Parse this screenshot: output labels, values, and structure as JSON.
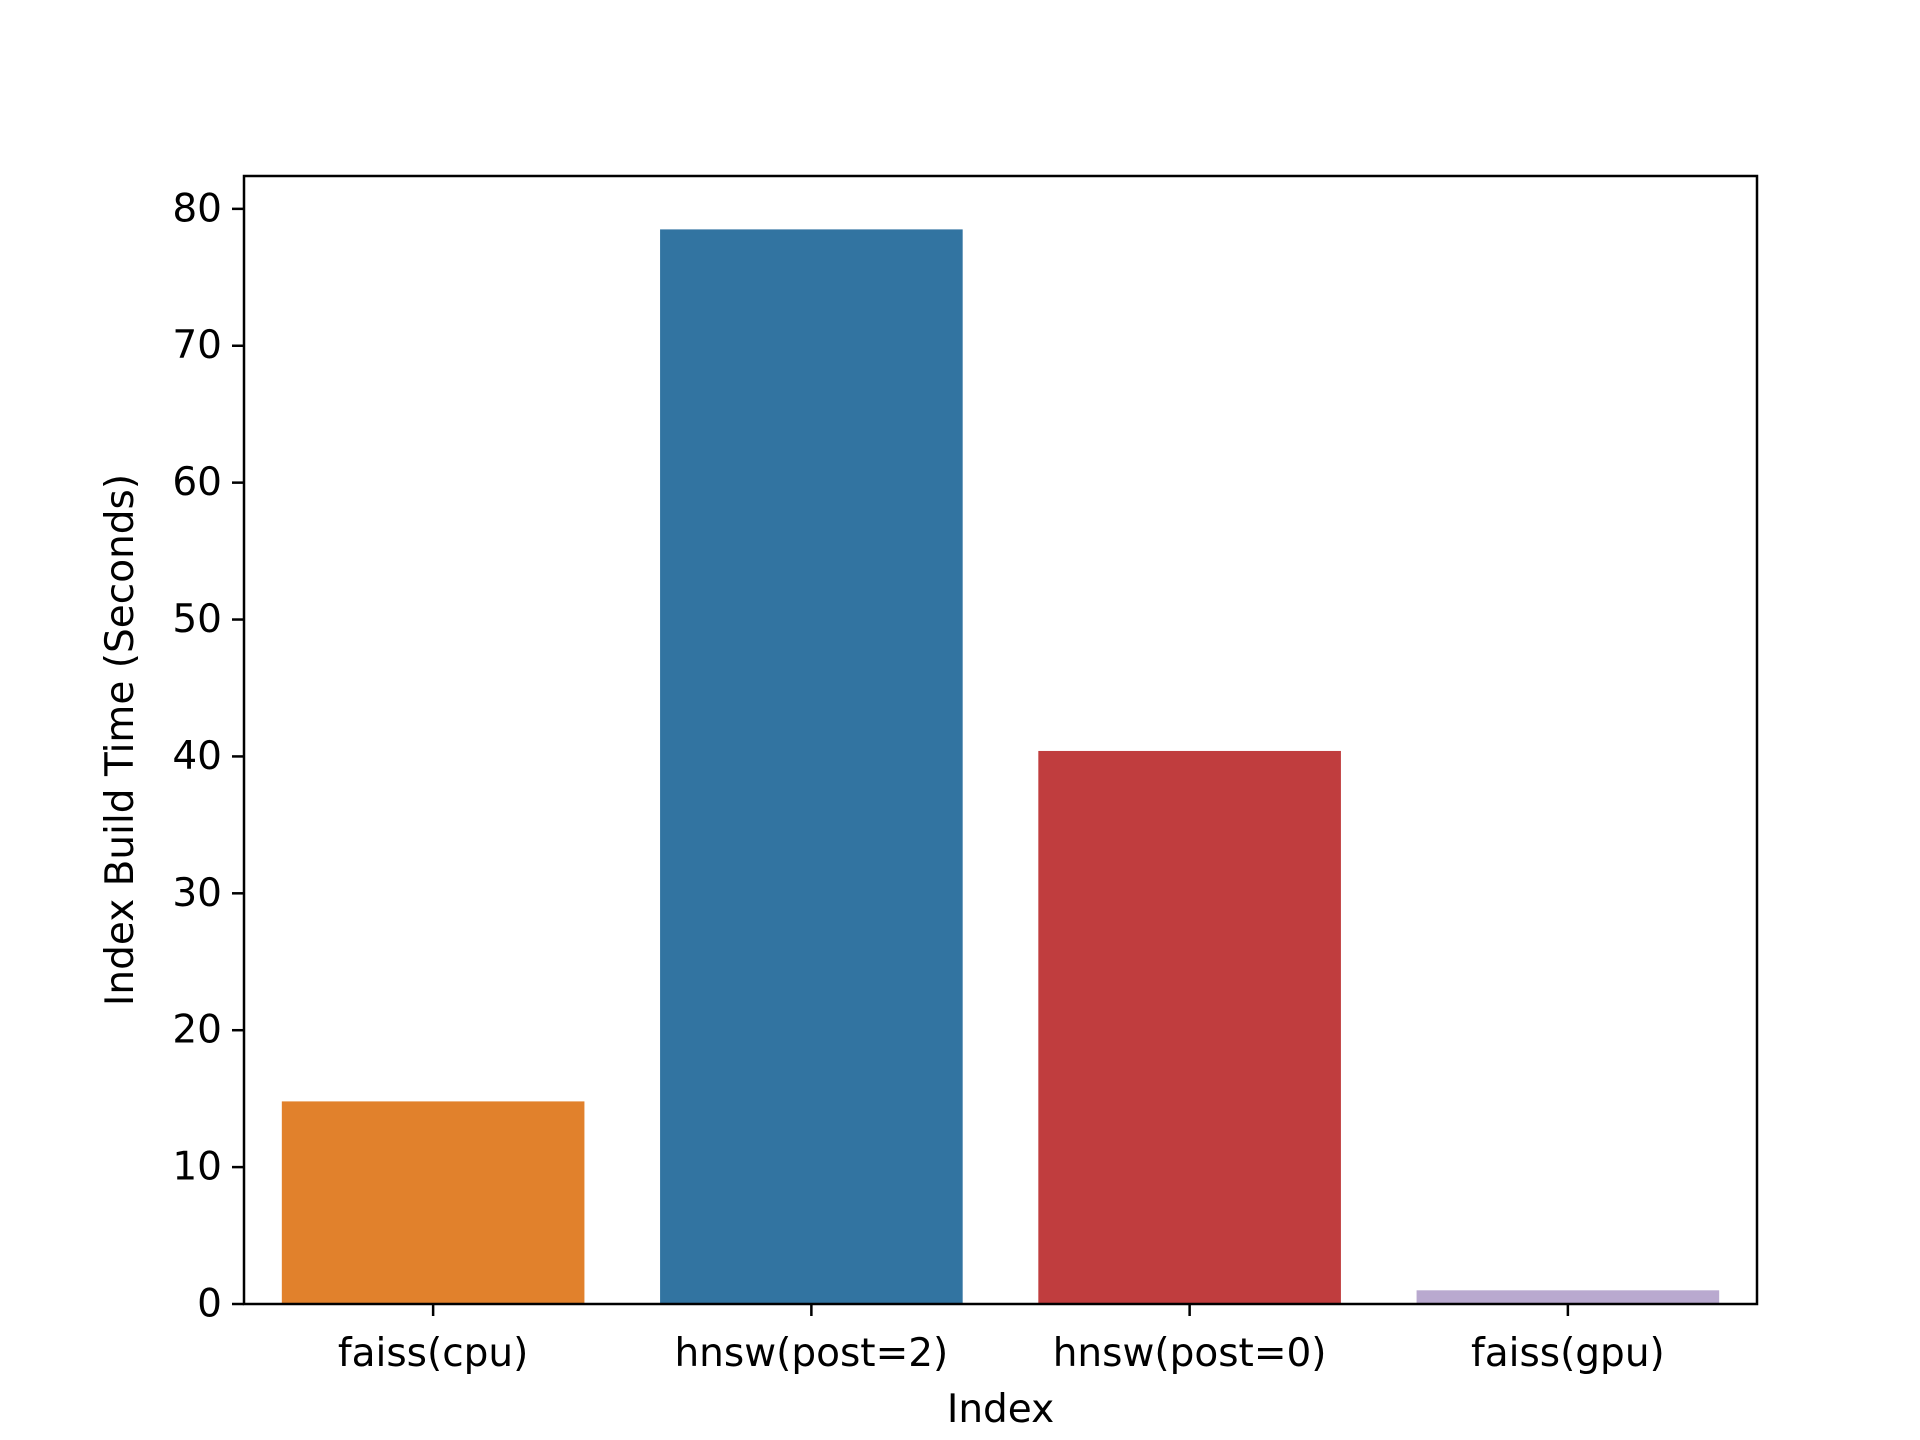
{
  "chart_data": {
    "type": "bar",
    "title": "",
    "xlabel": "Index",
    "ylabel": "Index Build Time (Seconds)",
    "categories": [
      "faiss(cpu)",
      "hnsw(post=2)",
      "hnsw(post=0)",
      "faiss(gpu)"
    ],
    "values": [
      14.8,
      78.5,
      40.4,
      1.0
    ],
    "colors": [
      "#e1812c",
      "#3274a1",
      "#c03d3e",
      "#b9a9cf"
    ],
    "ylim": [
      0,
      82.4
    ],
    "yticks": [
      0,
      10,
      20,
      30,
      40,
      50,
      60,
      70,
      80
    ],
    "grid": false,
    "legend": "none"
  }
}
